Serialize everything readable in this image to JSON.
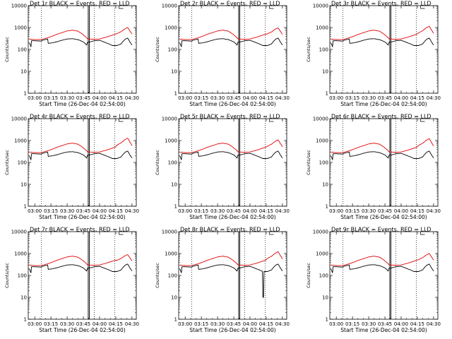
{
  "chart_data": {
    "type": "line",
    "layout": "3x3 grid",
    "shared": {
      "xlabel": "Start Time (26-Dec-04 02:54:00)",
      "ylabel": "Counts/sec",
      "x_tick_labels": [
        "03:00",
        "03:15",
        "03:30",
        "03:45",
        "04:00",
        "04:15",
        "04:30"
      ],
      "x_tick_minutes": [
        0,
        15,
        30,
        45,
        60,
        75,
        90
      ],
      "xlim_minutes": [
        -6,
        94
      ],
      "y_tick_labels": [
        "1",
        "10",
        "100",
        "1000",
        "10000"
      ],
      "ylim": [
        1,
        10000
      ],
      "yscale": "log",
      "x_minutes_note_time_origin": "03:00",
      "vertical_dotted_lines_minutes": [
        6,
        55,
        74
      ],
      "vertical_solid_lines_minutes": [
        49.5,
        50.5
      ],
      "legend": "title-text",
      "series_colors": {
        "events": "#000000",
        "lld": "#e00000"
      }
    },
    "panels": [
      {
        "title": "Det 1r BLACK = Events, RED = LLD",
        "lld_peak": 1000,
        "events_dip": null
      },
      {
        "title": "Det 2r BLACK = Events, RED = LLD",
        "lld_peak": 950,
        "events_dip": null
      },
      {
        "title": "Det 3r BLACK = Events, RED = LLD",
        "lld_peak": 1200,
        "events_dip": null
      },
      {
        "title": "Det 4r BLACK = Events, RED = LLD",
        "lld_peak": 1400,
        "events_dip": null
      },
      {
        "title": "Det 5r BLACK = Events, RED = LLD",
        "lld_peak": 1100,
        "events_dip": null
      },
      {
        "title": "Det 6r BLACK = Events, RED = LLD",
        "lld_peak": 1300,
        "events_dip": null
      },
      {
        "title": "Det 7r BLACK = Events, RED = LLD",
        "lld_peak": 850,
        "events_dip": null
      },
      {
        "title": "Det 8r BLACK = Events, RED = LLD",
        "lld_peak": 1300,
        "events_dip": 10
      },
      {
        "title": "Det 9r BLACK = Events, RED = LLD",
        "lld_peak": 1000,
        "events_dip": null
      }
    ],
    "lld_profile": {
      "x_minutes": [
        -5,
        0,
        6,
        8,
        12,
        16,
        20,
        25,
        30,
        35,
        40,
        45,
        49,
        51,
        55,
        60,
        66,
        70,
        76,
        80,
        84,
        86,
        88,
        90
      ],
      "y": [
        300,
        280,
        280,
        300,
        340,
        400,
        480,
        580,
        700,
        760,
        680,
        460,
        300,
        300,
        290,
        300,
        360,
        420,
        520,
        650,
        900,
        1000,
        700,
        500
      ]
    },
    "events_profile": {
      "x_minutes": [
        -5,
        -3.5,
        -3,
        0,
        6,
        7,
        12,
        12.5,
        16,
        20,
        25,
        30,
        35,
        40,
        45,
        48,
        49,
        51,
        55,
        60,
        66,
        72,
        76,
        80,
        84,
        86,
        88,
        90
      ],
      "y": [
        200,
        130,
        250,
        250,
        240,
        260,
        300,
        190,
        200,
        220,
        260,
        300,
        310,
        280,
        220,
        160,
        220,
        220,
        250,
        260,
        200,
        150,
        150,
        180,
        300,
        330,
        220,
        160
      ]
    }
  }
}
